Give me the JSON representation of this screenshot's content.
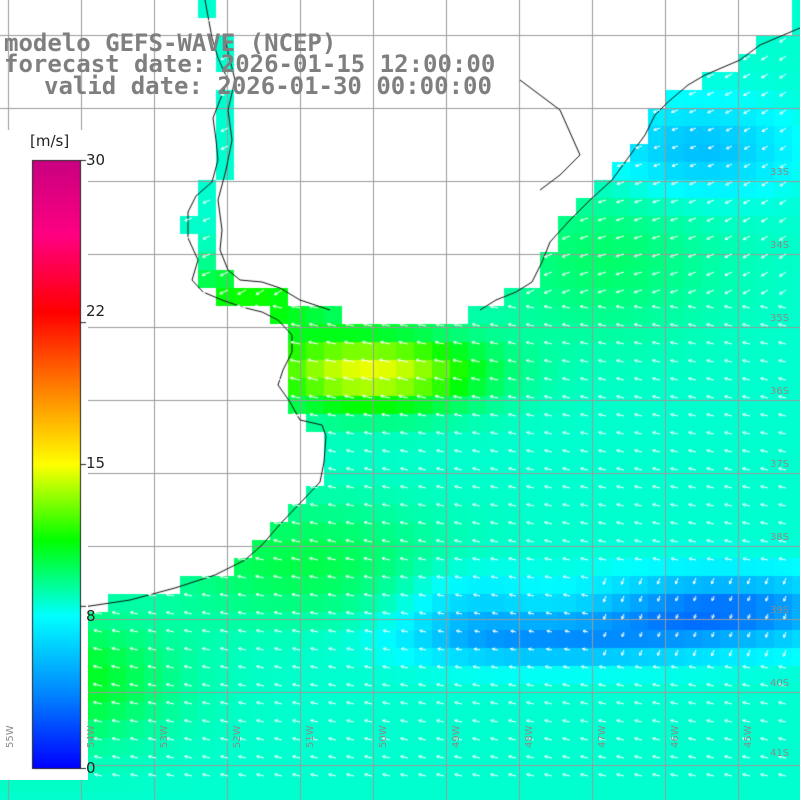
{
  "title": {
    "line1": "modelo GEFS-WAVE (NCEP)",
    "line2": "forecast date: 2026-01-15 12:00:00",
    "line3": "valid date: 2026-01-30 00:00:00"
  },
  "colorbar": {
    "unit": "[m/s]",
    "ticks": [
      "30",
      "22",
      "15",
      "8",
      "0"
    ],
    "tick_values": [
      30,
      22,
      15,
      8,
      0
    ],
    "min": 0,
    "max": 30,
    "colors": [
      "#0000ff",
      "#0088ff",
      "#00ffff",
      "#00ff00",
      "#ffff00",
      "#ff8000",
      "#ff0000",
      "#ff0080",
      "#c80080"
    ]
  },
  "map": {
    "variable": "wind speed",
    "latitude_labels": [
      "33S",
      "34S",
      "35S",
      "36S",
      "37S",
      "38S",
      "39S",
      "40S",
      "41S"
    ],
    "longitude_labels": [
      "55W",
      "54W",
      "53W",
      "52W",
      "51W",
      "50W",
      "49W",
      "48W",
      "47W",
      "46W",
      "45W"
    ],
    "ocean_speed_field": "cyan-to-green, strongest (~14 m/s) off Rio de la Plata, weakest (~3 m/s) near 39S 45W",
    "land_color": "#ffffff",
    "grid_color": "#9a9a9a",
    "arrow_color": "#ffffff"
  }
}
